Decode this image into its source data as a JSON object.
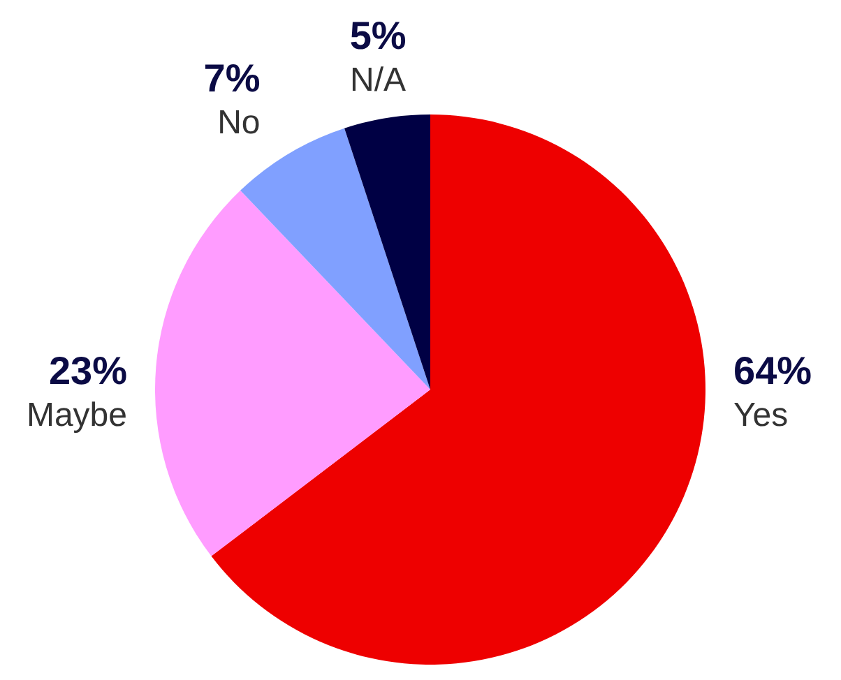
{
  "chart_data": {
    "type": "pie",
    "categories": [
      "Yes",
      "Maybe",
      "No",
      "N/A"
    ],
    "values": [
      64,
      23,
      7,
      5
    ],
    "colors": [
      "#ee0000",
      "#ff9cff",
      "#80a0ff",
      "#000044"
    ],
    "value_labels": [
      "64%",
      "23%",
      "7%",
      "5%"
    ]
  }
}
